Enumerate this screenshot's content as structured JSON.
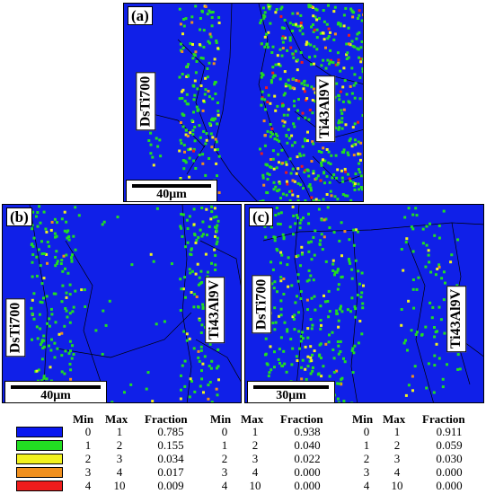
{
  "panels": {
    "a": {
      "label": "(a)",
      "left_alloy": "DsTi700",
      "right_alloy": "Ti43Al9V",
      "scale": "40μm"
    },
    "b": {
      "label": "(b)",
      "left_alloy": "DsTi700",
      "right_alloy": "Ti43Al9V",
      "scale": "40μm"
    },
    "c": {
      "label": "(c)",
      "left_alloy": "DsTi700",
      "right_alloy": "Ti43Al9V",
      "scale": "30μm"
    }
  },
  "legend": {
    "colors": [
      "#0a18f0",
      "#22dd22",
      "#f2f21e",
      "#f0901e",
      "#ee1c1c"
    ],
    "headers": {
      "min": "Min",
      "max": "Max",
      "fraction": "Fraction"
    },
    "ranges": [
      {
        "min": "0",
        "max": "1"
      },
      {
        "min": "1",
        "max": "2"
      },
      {
        "min": "2",
        "max": "3"
      },
      {
        "min": "3",
        "max": "4"
      },
      {
        "min": "4",
        "max": "10"
      }
    ],
    "fractions_a": [
      "0.785",
      "0.155",
      "0.034",
      "0.017",
      "0.009"
    ],
    "fractions_b": [
      "0.938",
      "0.040",
      "0.022",
      "0.000",
      "0.000"
    ],
    "fractions_c": [
      "0.911",
      "0.059",
      "0.030",
      "0.000",
      "0.000"
    ]
  }
}
